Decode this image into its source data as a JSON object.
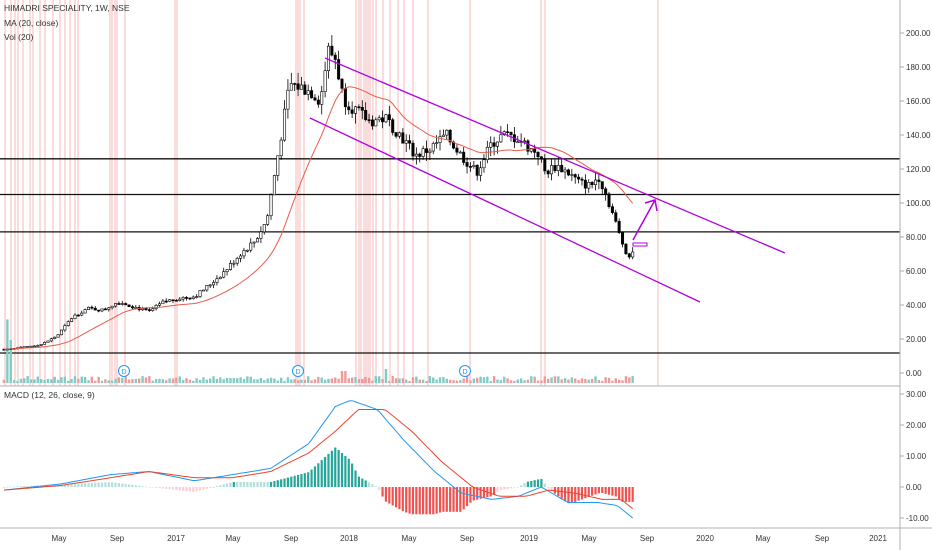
{
  "header": {
    "title": "HIMADRI SPECIALITY, 1W, NSE",
    "ma_label": "MA (20, close)",
    "vol_label": "Vol (20)",
    "macd_label": "MACD (12, 26, close, 9)"
  },
  "colors": {
    "up": "#ffffff",
    "down": "#000000",
    "ma": "#e85c4a",
    "channel": "#b000e0",
    "event_lines": "#f08a8a",
    "macd_line": "#2196f3",
    "signal_line": "#e8452c",
    "hist_up_strong": "#26a69a",
    "hist_up_weak": "#b2dfdb",
    "hist_down_strong": "#ef5350",
    "hist_down_weak": "#ffcdd2",
    "dividend_badge": "#2196f3"
  },
  "x_axis": {
    "labels": [
      "May",
      "Sep",
      "2017",
      "May",
      "Sep",
      "2018",
      "May",
      "Sep",
      "2019",
      "May",
      "Sep",
      "2020",
      "May",
      "Sep",
      "2021"
    ]
  },
  "price_axis": {
    "ticks": [
      "200.00",
      "180.00",
      "160.00",
      "140.00",
      "120.00",
      "100.00",
      "80.00",
      "60.00",
      "40.00",
      "20.00",
      "0.00"
    ]
  },
  "macd_axis": {
    "ticks": [
      "30.00",
      "20.00",
      "10.00",
      "0.00",
      "-10.00"
    ]
  },
  "dividend_markers": [
    "D",
    "D",
    "D"
  ],
  "chart_data": [
    {
      "type": "candlestick",
      "title": "HIMADRI SPECIALITY, 1W, NSE",
      "ylim": [
        0,
        210
      ],
      "series": [
        {
          "name": "HIMADRI SPECIALITY",
          "approx_close_by_period": {
            "2016-Jan": 14,
            "2016-Mar": 16,
            "2016-May": 24,
            "2016-Jul": 37,
            "2016-Sep": 40,
            "2016-Nov": 35,
            "2017-Jan": 40,
            "2017-Mar": 47,
            "2017-May": 62,
            "2017-Jul": 80,
            "2017-Sep": 120,
            "2017-Oct": 170,
            "2017-Dec": 160,
            "2018-Jan": 185,
            "2018-Feb": 160,
            "2018-Apr": 148,
            "2018-Jun": 135,
            "2018-Aug": 140,
            "2018-Oct": 118,
            "2018-Dec": 140,
            "2019-Jan": 130,
            "2019-Mar": 118,
            "2019-May": 103,
            "2019-Jul": 75,
            "2019-Aug": 70
          }
        },
        {
          "name": "MA (20, close)"
        }
      ],
      "horizontal_levels": [
        126,
        105,
        83,
        12
      ],
      "channel_lines": [
        {
          "from": [
            "2017-Oct",
            185
          ],
          "to": [
            "2020-Mar",
            70
          ]
        },
        {
          "from": [
            "2017-Oct",
            150
          ],
          "to": [
            "2019-Dec",
            42
          ]
        }
      ],
      "price_axis_range": [
        0,
        200
      ]
    },
    {
      "type": "bar",
      "title": "Vol (20)",
      "series": [
        {
          "name": "Vol (20)"
        }
      ]
    },
    {
      "type": "line",
      "title": "MACD (12, 26, close, 9)",
      "ylim": [
        -12,
        31
      ],
      "series": [
        {
          "name": "MACD",
          "approx_by_period": {
            "2016-Jan": -1,
            "2016-Jun": 4,
            "2016-Sep": 5,
            "2017-Jan": 2,
            "2017-Jun": 6,
            "2017-Sep": 16,
            "2017-Oct": 28,
            "2017-Dec": 25,
            "2018-Mar": 15,
            "2018-May": 5,
            "2018-Aug": -2,
            "2018-Dec": -5,
            "2019-Jan": 0,
            "2019-Apr": -5,
            "2019-Jul": -6,
            "2019-Aug": -10
          }
        },
        {
          "name": "Signal",
          "approx_by_period": {
            "2016-Jan": -1,
            "2016-Jun": 3,
            "2016-Sep": 5,
            "2017-Jan": 2,
            "2017-Jun": 5,
            "2017-Sep": 12,
            "2017-Oct": 20,
            "2017-Dec": 25,
            "2018-Mar": 20,
            "2018-May": 10,
            "2018-Aug": 0,
            "2018-Dec": -3,
            "2019-Jan": 0,
            "2019-Apr": -4,
            "2019-Jul": -4,
            "2019-Aug": -7
          }
        }
      ],
      "axis_range": [
        -10,
        30
      ]
    }
  ]
}
